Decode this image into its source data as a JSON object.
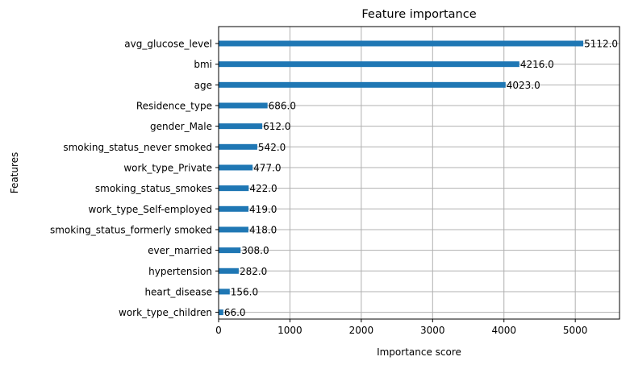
{
  "chart_data": {
    "type": "bar",
    "orientation": "horizontal",
    "title": "Feature importance",
    "xlabel": "Importance score",
    "ylabel": "Features",
    "xlim": [
      0,
      5620
    ],
    "xticks": [
      "0",
      "1000",
      "2000",
      "3000",
      "4000",
      "5000"
    ],
    "grid": true,
    "categories": [
      "avg_glucose_level",
      "bmi",
      "age",
      "Residence_type",
      "gender_Male",
      "smoking_status_never smoked",
      "work_type_Private",
      "smoking_status_smokes",
      "work_type_Self-employed",
      "smoking_status_formerly smoked",
      "ever_married",
      "hypertension",
      "heart_disease",
      "work_type_children"
    ],
    "values": [
      5112,
      4216,
      4023,
      686,
      612,
      542,
      477,
      422,
      419,
      418,
      308,
      282,
      156,
      66
    ],
    "value_labels": [
      "5112.0",
      "4216.0",
      "4023.0",
      "686.0",
      "612.0",
      "542.0",
      "477.0",
      "422.0",
      "419.0",
      "418.0",
      "308.0",
      "282.0",
      "156.0",
      "66.0"
    ],
    "bar_color": "#1f77b4",
    "grid_color": "#b0b0b0"
  }
}
